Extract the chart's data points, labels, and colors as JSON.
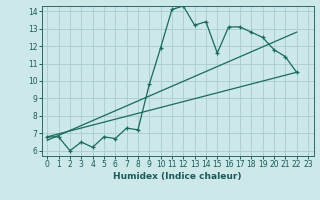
{
  "title": "",
  "xlabel": "Humidex (Indice chaleur)",
  "ylabel": "",
  "bg_color": "#cce8e8",
  "grid_color": "#aacccc",
  "line_color": "#1a6a5a",
  "xlim": [
    -0.5,
    23.5
  ],
  "ylim": [
    5.7,
    14.3
  ],
  "xticks": [
    0,
    1,
    2,
    3,
    4,
    5,
    6,
    7,
    8,
    9,
    10,
    11,
    12,
    13,
    14,
    15,
    16,
    17,
    18,
    19,
    20,
    21,
    22,
    23
  ],
  "yticks": [
    6,
    7,
    8,
    9,
    10,
    11,
    12,
    13,
    14
  ],
  "curve1_x": [
    0,
    1,
    2,
    3,
    4,
    5,
    6,
    7,
    8,
    9,
    10,
    11,
    12,
    13,
    14,
    15,
    16,
    17,
    18,
    19,
    20,
    21,
    22
  ],
  "curve1_y": [
    6.8,
    6.8,
    6.0,
    6.5,
    6.2,
    6.8,
    6.7,
    7.3,
    7.2,
    9.8,
    11.9,
    14.1,
    14.3,
    13.2,
    13.4,
    11.6,
    13.1,
    13.1,
    12.8,
    12.5,
    11.8,
    11.4,
    10.5
  ],
  "line1_x": [
    0,
    22
  ],
  "line1_y": [
    6.8,
    10.5
  ],
  "line2_x": [
    0,
    22
  ],
  "line2_y": [
    6.6,
    12.8
  ]
}
